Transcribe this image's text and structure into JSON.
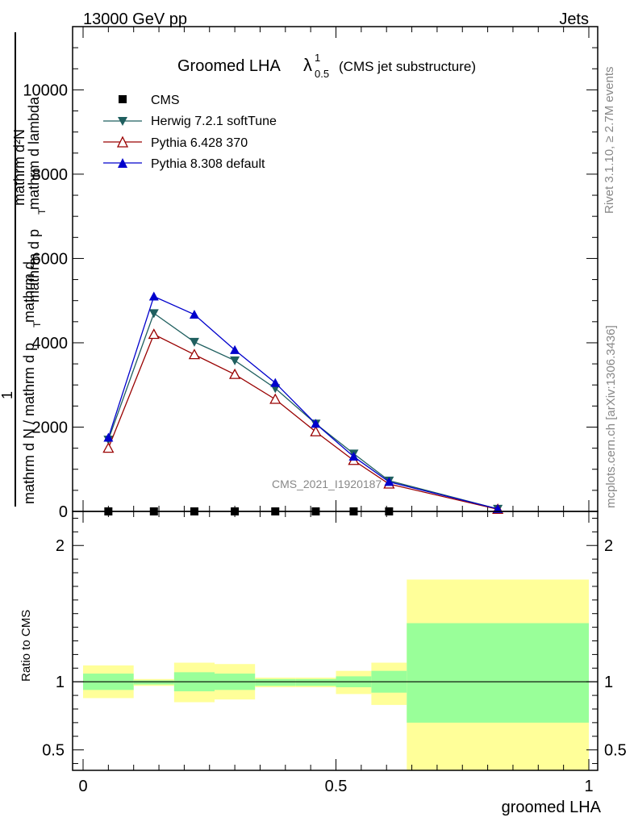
{
  "header": {
    "left": "13000 GeV pp",
    "right": "Jets"
  },
  "side_labels": {
    "rivet": "Rivet 3.1.10, ≥ 2.7M events",
    "mcplots": "mcplots.cern.ch [arXiv:1306.3436]"
  },
  "chart_data": [
    {
      "type": "line",
      "panel": "main",
      "title": "Groomed LHA",
      "title_symbol": "λ",
      "title_sup": "1",
      "title_sub": "0.5",
      "subtitle": "(CMS jet substructure)",
      "watermark": "CMS_2021_I1920187",
      "ylabel_top": "mathrm d²N",
      "ylabel_top_2": "mathrm d p",
      "ylabel_top_sub": "T",
      "ylabel_top_3": "mathrm d lambda",
      "ylabel_one": "1",
      "ylabel_bottom": "mathrm d N / mathrm d p",
      "ylabel_bottom_sub": "T",
      "ylabel_bottom_2": "mathrm d",
      "xlabel": "",
      "xlim": [
        0,
        1
      ],
      "ylim": [
        0,
        11500
      ],
      "yticks": [
        0,
        2000,
        4000,
        6000,
        8000,
        10000
      ],
      "yticklabels": [
        "0",
        "2000",
        "4000",
        "6000",
        "8000",
        "10000"
      ],
      "legend_position": "top-left",
      "series": [
        {
          "name": "CMS",
          "marker": "square",
          "color": "#000000",
          "x": [
            0.05,
            0.14,
            0.22,
            0.3,
            0.38,
            0.46,
            0.535,
            0.605
          ],
          "values": [
            0,
            0,
            0,
            0,
            0,
            0,
            0,
            0
          ]
        },
        {
          "name": "Herwig 7.2.1 softTune",
          "marker": "triangle-down",
          "color": "#1f5f5f",
          "x": [
            0.05,
            0.14,
            0.22,
            0.3,
            0.38,
            0.46,
            0.535,
            0.605,
            0.82
          ],
          "values": [
            1700,
            4700,
            4020,
            3580,
            2920,
            2080,
            1370,
            730,
            60
          ]
        },
        {
          "name": "Pythia 6.428 370",
          "marker": "triangle-open",
          "color": "#990000",
          "x": [
            0.05,
            0.14,
            0.22,
            0.3,
            0.38,
            0.46,
            0.535,
            0.605,
            0.82
          ],
          "values": [
            1500,
            4200,
            3720,
            3250,
            2660,
            1890,
            1210,
            650,
            50
          ]
        },
        {
          "name": "Pythia 8.308 default",
          "marker": "triangle-up",
          "color": "#0000cc",
          "x": [
            0.05,
            0.14,
            0.22,
            0.3,
            0.38,
            0.46,
            0.535,
            0.605,
            0.82
          ],
          "values": [
            1750,
            5100,
            4670,
            3830,
            3050,
            2080,
            1300,
            700,
            60
          ]
        }
      ]
    },
    {
      "type": "area",
      "panel": "ratio",
      "ylabel": "Ratio to CMS",
      "xlabel": "groomed LHA",
      "xlim": [
        0,
        1
      ],
      "ylim": [
        0.35,
        2.25
      ],
      "yticks": [
        0.5,
        1,
        2
      ],
      "yticklabels": [
        "0.5",
        "1",
        "2"
      ],
      "xticks": [
        0,
        0.5,
        1
      ],
      "xticklabels": [
        "0",
        "0.5",
        "1"
      ],
      "reference_line": 1,
      "bins": [
        {
          "x0": 0.0,
          "x1": 0.1,
          "stat_lo": 0.94,
          "stat_hi": 1.06,
          "tot_lo": 0.88,
          "tot_hi": 1.12
        },
        {
          "x0": 0.1,
          "x1": 0.18,
          "stat_lo": 0.98,
          "stat_hi": 1.01,
          "tot_lo": 0.97,
          "tot_hi": 1.02
        },
        {
          "x0": 0.18,
          "x1": 0.26,
          "stat_lo": 0.93,
          "stat_hi": 1.07,
          "tot_lo": 0.85,
          "tot_hi": 1.14
        },
        {
          "x0": 0.26,
          "x1": 0.34,
          "stat_lo": 0.94,
          "stat_hi": 1.06,
          "tot_lo": 0.87,
          "tot_hi": 1.13
        },
        {
          "x0": 0.34,
          "x1": 0.42,
          "stat_lo": 0.97,
          "stat_hi": 1.02,
          "tot_lo": 0.96,
          "tot_hi": 1.03
        },
        {
          "x0": 0.42,
          "x1": 0.5,
          "stat_lo": 0.97,
          "stat_hi": 1.02,
          "tot_lo": 0.96,
          "tot_hi": 1.03
        },
        {
          "x0": 0.5,
          "x1": 0.57,
          "stat_lo": 0.96,
          "stat_hi": 1.04,
          "tot_lo": 0.91,
          "tot_hi": 1.08
        },
        {
          "x0": 0.57,
          "x1": 0.64,
          "stat_lo": 0.92,
          "stat_hi": 1.08,
          "tot_lo": 0.83,
          "tot_hi": 1.14
        },
        {
          "x0": 0.64,
          "x1": 1.0,
          "stat_lo": 0.7,
          "stat_hi": 1.43,
          "tot_lo": 0.35,
          "tot_hi": 1.75
        }
      ],
      "colors": {
        "stat": "#99ff99",
        "tot": "#ffff99"
      }
    }
  ]
}
